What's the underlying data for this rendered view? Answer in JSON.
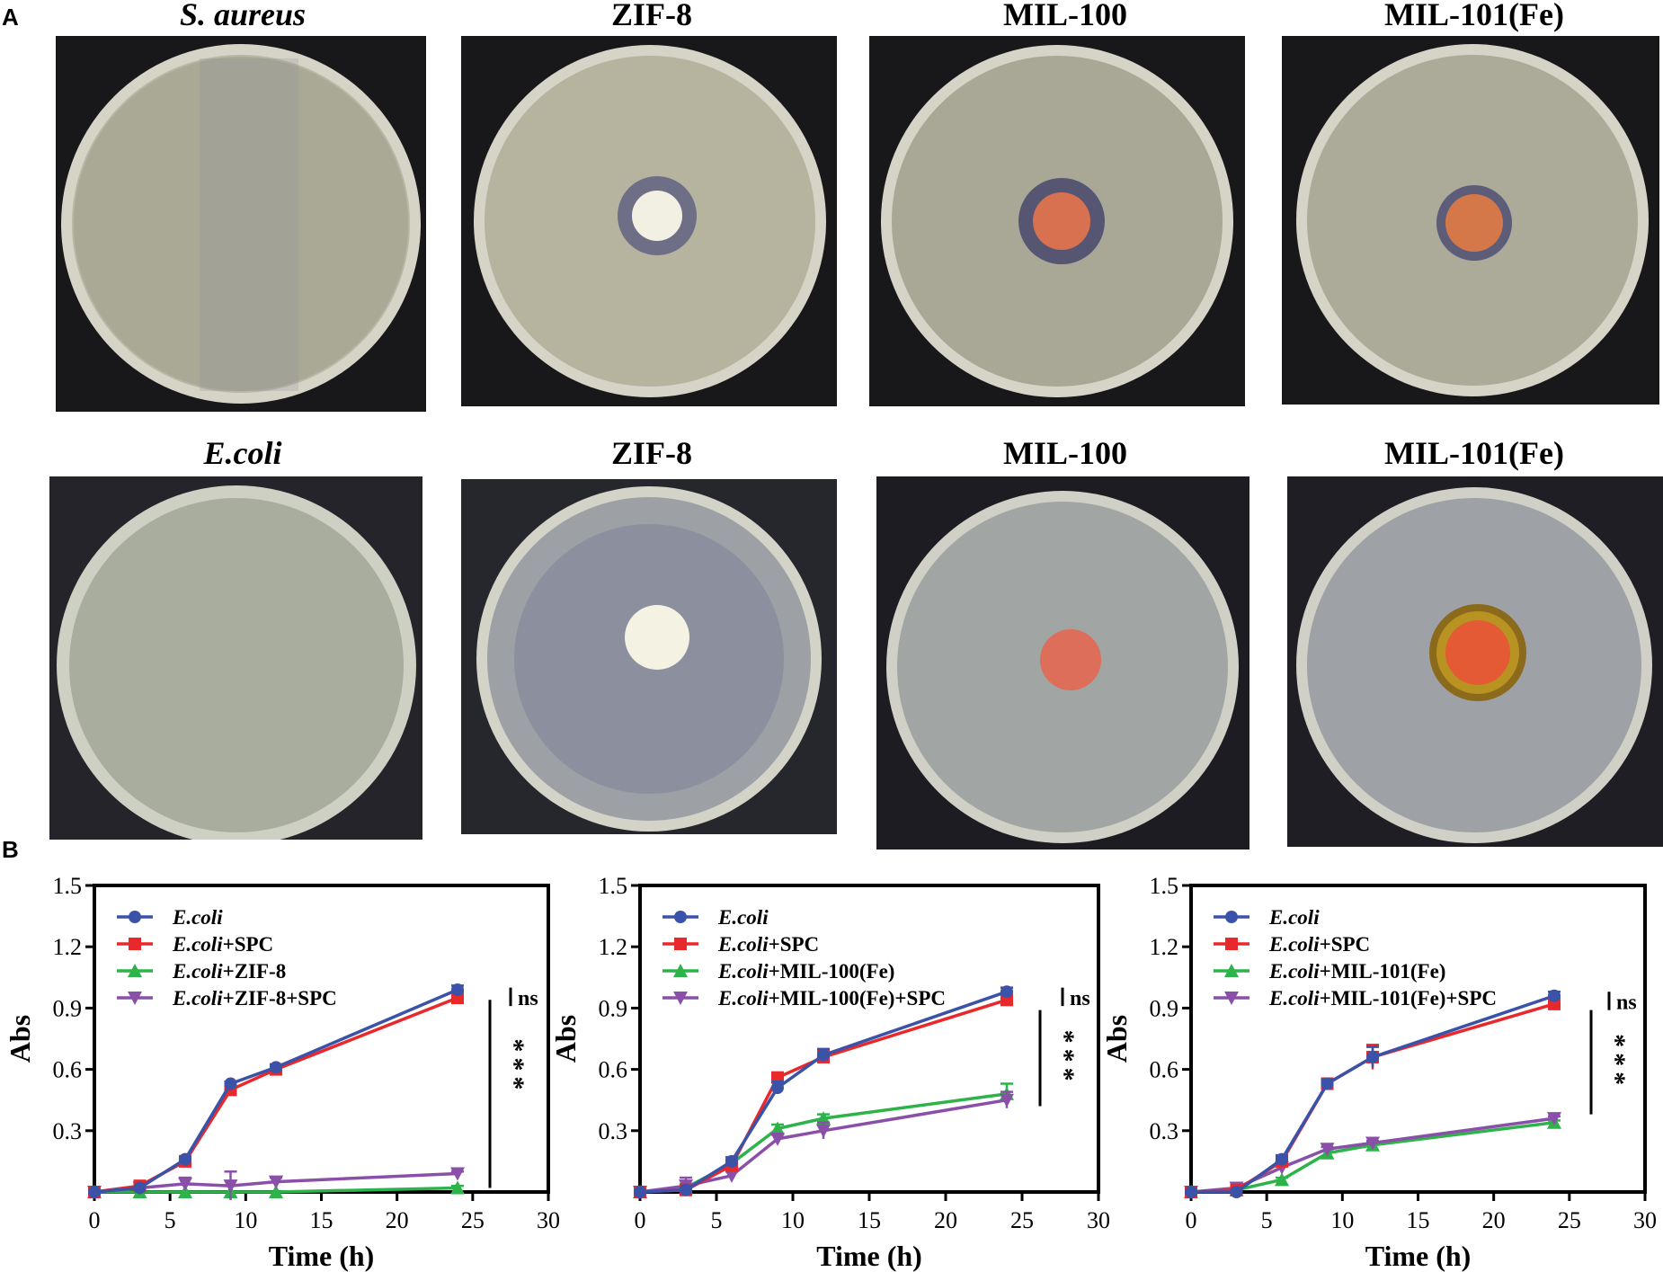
{
  "panels": {
    "a": "A",
    "b": "B"
  },
  "plates": {
    "row1": [
      {
        "title": "S. aureus",
        "italic": true,
        "disc": "none"
      },
      {
        "title": "ZIF-8",
        "italic": false,
        "disc": "white"
      },
      {
        "title": "MIL-100",
        "italic": false,
        "disc": "orange"
      },
      {
        "title": "MIL-101(Fe)",
        "italic": false,
        "disc": "orange"
      }
    ],
    "row2": [
      {
        "title": "E.coli",
        "italic": true,
        "disc": "none"
      },
      {
        "title": "ZIF-8",
        "italic": false,
        "disc": "white"
      },
      {
        "title": "MIL-100",
        "italic": false,
        "disc": "orange"
      },
      {
        "title": "MIL-101(Fe)",
        "italic": false,
        "disc": "orange-halo"
      }
    ]
  },
  "chart_data": [
    {
      "type": "line",
      "xlabel": "Time (h)",
      "ylabel": "Abs",
      "xlim": [
        0,
        30
      ],
      "ylim": [
        0,
        1.5
      ],
      "xticks": [
        "0",
        "5",
        "10",
        "15",
        "20",
        "25",
        "30"
      ],
      "yticks": [
        "0.3",
        "0.6",
        "0.9",
        "1.2",
        "1.5"
      ],
      "legend_position": "top-left",
      "series": [
        {
          "name": "E.coli",
          "name_italic": "E.coli",
          "name_rest": "",
          "color": "#3a52a8",
          "marker": "circle",
          "x": [
            0,
            3,
            6,
            9,
            12,
            24
          ],
          "y": [
            0.0,
            0.02,
            0.16,
            0.53,
            0.61,
            0.99
          ],
          "err": [
            0,
            0,
            0.01,
            0.01,
            0.01,
            0.02
          ]
        },
        {
          "name": "E.coli+SPC",
          "name_italic": "E.coli",
          "name_rest": "+SPC",
          "color": "#e8282b",
          "marker": "square",
          "x": [
            0,
            3,
            6,
            9,
            12,
            24
          ],
          "y": [
            0.0,
            0.03,
            0.15,
            0.5,
            0.6,
            0.95
          ],
          "err": [
            0,
            0,
            0.01,
            0.02,
            0.01,
            0.03
          ]
        },
        {
          "name": "E.coli+ZIF-8",
          "name_italic": "E.coli",
          "name_rest": "+ZIF-8",
          "color": "#2db34a",
          "marker": "triangle-up",
          "x": [
            0,
            3,
            6,
            9,
            12,
            24
          ],
          "y": [
            0.0,
            0.0,
            0.0,
            0.0,
            0.0,
            0.02
          ],
          "err": [
            0,
            0,
            0,
            0,
            0,
            0.01
          ]
        },
        {
          "name": "E.coli+ZIF-8+SPC",
          "name_italic": "E.coli",
          "name_rest": "+ZIF-8+SPC",
          "color": "#8a4fa8",
          "marker": "triangle-down",
          "x": [
            0,
            3,
            6,
            9,
            12,
            24
          ],
          "y": [
            0.0,
            0.02,
            0.04,
            0.03,
            0.05,
            0.09
          ],
          "err": [
            0,
            0.01,
            0.03,
            0.07,
            0.02,
            0.01
          ]
        }
      ],
      "significance": [
        {
          "label": "ns"
        },
        {
          "label": "***"
        }
      ]
    },
    {
      "type": "line",
      "xlabel": "Time (h)",
      "ylabel": "Abs",
      "xlim": [
        0,
        30
      ],
      "ylim": [
        0,
        1.5
      ],
      "xticks": [
        "0",
        "5",
        "10",
        "15",
        "20",
        "25",
        "30"
      ],
      "yticks": [
        "0.3",
        "0.6",
        "0.9",
        "1.2",
        "1.5"
      ],
      "legend_position": "top-left",
      "series": [
        {
          "name": "E.coli",
          "name_italic": "E.coli",
          "name_rest": "",
          "color": "#3a52a8",
          "marker": "circle",
          "x": [
            0,
            3,
            6,
            9,
            12,
            24
          ],
          "y": [
            0.0,
            0.01,
            0.15,
            0.51,
            0.67,
            0.98
          ],
          "err": [
            0,
            0.01,
            0.02,
            0.03,
            0.03,
            0.02
          ]
        },
        {
          "name": "E.coli+SPC",
          "name_italic": "E.coli",
          "name_rest": "+SPC",
          "color": "#e8282b",
          "marker": "square",
          "x": [
            0,
            3,
            6,
            9,
            12,
            24
          ],
          "y": [
            0.0,
            0.01,
            0.13,
            0.56,
            0.66,
            0.94
          ],
          "err": [
            0,
            0.01,
            0.02,
            0.02,
            0.03,
            0.02
          ]
        },
        {
          "name": "E.coli+MIL-100(Fe)",
          "name_italic": "E.coli",
          "name_rest": "+MIL-100(Fe)",
          "color": "#2db34a",
          "marker": "triangle-up",
          "x": [
            0,
            3,
            6,
            9,
            12,
            24
          ],
          "y": [
            0.0,
            0.02,
            0.14,
            0.31,
            0.36,
            0.48
          ],
          "err": [
            0,
            0.02,
            0.02,
            0.02,
            0.02,
            0.05
          ]
        },
        {
          "name": "E.coli+MIL-100(Fe)+SPC",
          "name_italic": "E.coli",
          "name_rest": "+MIL-100(Fe)+SPC",
          "color": "#8a4fa8",
          "marker": "triangle-down",
          "x": [
            0,
            3,
            6,
            9,
            12,
            24
          ],
          "y": [
            0.0,
            0.03,
            0.08,
            0.26,
            0.3,
            0.45
          ],
          "err": [
            0,
            0.04,
            0.02,
            0.02,
            0.04,
            0.04
          ]
        }
      ],
      "significance": [
        {
          "label": "ns"
        },
        {
          "label": "***"
        }
      ]
    },
    {
      "type": "line",
      "xlabel": "Time (h)",
      "ylabel": "Abs",
      "xlim": [
        0,
        30
      ],
      "ylim": [
        0,
        1.5
      ],
      "xticks": [
        "0",
        "5",
        "10",
        "15",
        "20",
        "25",
        "30"
      ],
      "yticks": [
        "0.3",
        "0.6",
        "0.9",
        "1.2",
        "1.5"
      ],
      "legend_position": "top-left",
      "series": [
        {
          "name": "E.coli",
          "name_italic": "E.coli",
          "name_rest": "",
          "color": "#3a52a8",
          "marker": "circle",
          "x": [
            0,
            3,
            6,
            9,
            12,
            24
          ],
          "y": [
            0.0,
            0.0,
            0.16,
            0.53,
            0.66,
            0.96
          ],
          "err": [
            0,
            0,
            0.02,
            0.02,
            0.05,
            0.02
          ]
        },
        {
          "name": "E.coli+SPC",
          "name_italic": "E.coli",
          "name_rest": "+SPC",
          "color": "#e8282b",
          "marker": "square",
          "x": [
            0,
            3,
            6,
            9,
            12,
            24
          ],
          "y": [
            0.0,
            0.01,
            0.15,
            0.53,
            0.66,
            0.92
          ],
          "err": [
            0,
            0.01,
            0.02,
            0.02,
            0.06,
            0.03
          ]
        },
        {
          "name": "E.coli+MIL-101(Fe)",
          "name_italic": "E.coli",
          "name_rest": "+MIL-101(Fe)",
          "color": "#2db34a",
          "marker": "triangle-up",
          "x": [
            0,
            3,
            6,
            9,
            12,
            24
          ],
          "y": [
            0.0,
            0.01,
            0.06,
            0.19,
            0.23,
            0.34
          ],
          "err": [
            0,
            0,
            0.01,
            0.01,
            0.01,
            0.01
          ]
        },
        {
          "name": "E.coli+MIL-101(Fe)+SPC",
          "name_italic": "E.coli",
          "name_rest": "+MIL-101(Fe)+SPC",
          "color": "#8a4fa8",
          "marker": "triangle-down",
          "x": [
            0,
            3,
            6,
            9,
            12,
            24
          ],
          "y": [
            0.0,
            0.02,
            0.12,
            0.21,
            0.24,
            0.36
          ],
          "err": [
            0,
            0.01,
            0.01,
            0.01,
            0.01,
            0.01
          ]
        }
      ],
      "significance": [
        {
          "label": "ns"
        },
        {
          "label": "***"
        }
      ]
    }
  ]
}
